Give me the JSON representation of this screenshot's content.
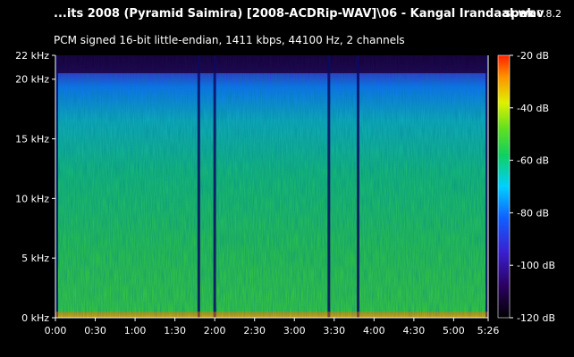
{
  "header": {
    "title": "...its 2008 (Pyramid Saimira) [2008-ACDRip-WAV]\\06 - Kangal Irandaal.wav",
    "app_name": "spek",
    "app_version": "0.8.2",
    "info": "PCM signed 16-bit little-endian, 1411 kbps, 44100 Hz, 2 channels"
  },
  "chart_data": {
    "type": "heatmap",
    "title": "",
    "xlabel": "",
    "ylabel": "",
    "x_ticks": [
      "0:00",
      "0:30",
      "1:00",
      "1:30",
      "2:00",
      "2:30",
      "3:00",
      "3:30",
      "4:00",
      "4:30",
      "5:00",
      "5:26"
    ],
    "x_tick_seconds": [
      0,
      30,
      60,
      90,
      120,
      150,
      180,
      210,
      240,
      270,
      300,
      326
    ],
    "xlim": [
      0,
      326
    ],
    "y_ticks": [
      "0 kHz",
      "5 kHz",
      "10 kHz",
      "15 kHz",
      "20 kHz",
      "22 kHz"
    ],
    "y_tick_khz": [
      0,
      5,
      10,
      15,
      20,
      22
    ],
    "ylim": [
      0,
      22
    ],
    "colorbar_ticks": [
      "-20 dB",
      "-40 dB",
      "-60 dB",
      "-80 dB",
      "-100 dB",
      "-120 dB"
    ],
    "colorbar_db": [
      -20,
      -40,
      -60,
      -80,
      -100,
      -120
    ],
    "colorbar_range": [
      -120,
      -20
    ],
    "colors": [
      "#000000",
      "#2a0060",
      "#3a1fd0",
      "#1060ff",
      "#00d0ff",
      "#10d060",
      "#60e020",
      "#e0f000",
      "#ff9000",
      "#ff2000"
    ],
    "cutoff_khz": 20.5,
    "silent_gaps": [
      [
        0,
        2
      ],
      [
        107,
        109
      ],
      [
        119,
        121
      ],
      [
        205,
        207
      ],
      [
        227,
        229
      ],
      [
        324,
        326
      ]
    ]
  }
}
